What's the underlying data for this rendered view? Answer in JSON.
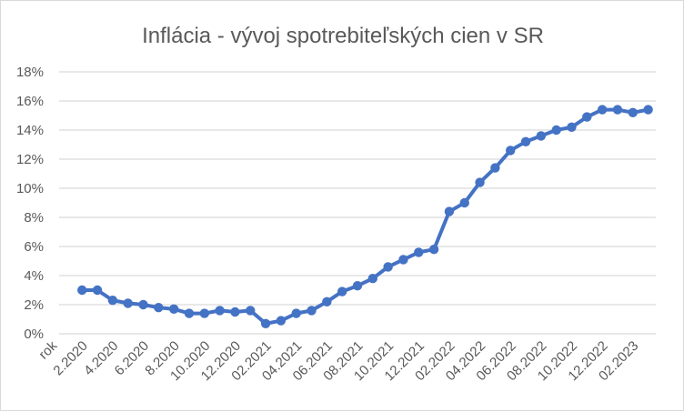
{
  "chart_data": {
    "type": "line",
    "title": "Inflácia - vývoj spotrebiteľských cien v SR",
    "xlabel": "",
    "ylabel": "",
    "categories": [
      "rok",
      "",
      "2.2020",
      "",
      "4.2020",
      "",
      "6.2020",
      "",
      "8.2020",
      "",
      "10.2020",
      "",
      "12.2020",
      "",
      "02.2021",
      "",
      "04.2021",
      "",
      "06.2021",
      "",
      "08.2021",
      "",
      "10.2021",
      "",
      "12.2021",
      "",
      "02.2022",
      "",
      "04.2022",
      "",
      "06.2022",
      "",
      "08.2022",
      "",
      "10.2022",
      "",
      "12.2022",
      "",
      "02.2023"
    ],
    "series": [
      {
        "values": [
          null,
          3.0,
          3.0,
          2.3,
          2.1,
          2.0,
          1.8,
          1.7,
          1.4,
          1.4,
          1.6,
          1.5,
          1.6,
          0.7,
          0.9,
          1.4,
          1.6,
          2.2,
          2.9,
          3.3,
          3.8,
          4.6,
          5.1,
          5.6,
          5.8,
          8.4,
          9.0,
          10.4,
          11.4,
          12.6,
          13.2,
          13.6,
          14.0,
          14.2,
          14.9,
          15.4,
          15.4,
          15.2,
          15.4
        ],
        "color": "#4472c4"
      }
    ],
    "ylim": [
      0,
      18
    ],
    "yticks": [
      "0%",
      "2%",
      "4%",
      "6%",
      "8%",
      "10%",
      "12%",
      "14%",
      "16%",
      "18%"
    ],
    "grid": true,
    "legend": "none"
  }
}
